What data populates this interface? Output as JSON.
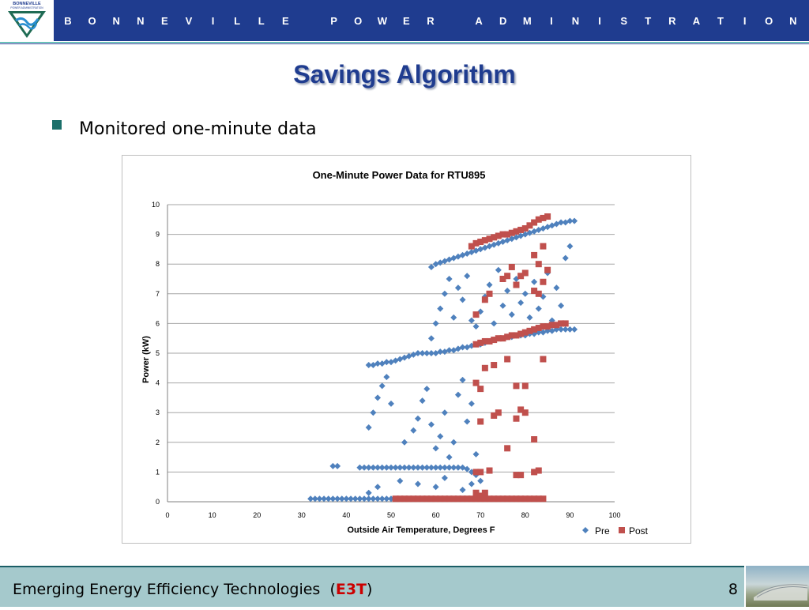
{
  "header": {
    "org_name": "BONNEVILLE POWER ADMINISTRATION",
    "logo_lines": [
      "BONNEVILLE",
      "POWER ADMINISTRATION"
    ]
  },
  "slide": {
    "title": "Savings Algorithm",
    "bullets": [
      "Monitored one-minute data"
    ]
  },
  "chart_data": {
    "type": "scatter",
    "title": "One-Minute Power Data for RTU895",
    "xlabel": "Outside Air Temperature, Degrees F",
    "ylabel": "Power (kW)",
    "xlim": [
      0,
      100
    ],
    "ylim": [
      0,
      10
    ],
    "xticks": [
      0,
      10,
      20,
      30,
      40,
      50,
      60,
      70,
      80,
      90,
      100
    ],
    "yticks": [
      0,
      1,
      2,
      3,
      4,
      5,
      6,
      7,
      8,
      9,
      10
    ],
    "grid": "horizontal",
    "legend": "bottom-right",
    "series": [
      {
        "name": "Pre",
        "color": "#4f81bd",
        "marker": "diamond",
        "points": [
          [
            32,
            0.1
          ],
          [
            33,
            0.1
          ],
          [
            34,
            0.1
          ],
          [
            35,
            0.1
          ],
          [
            36,
            0.1
          ],
          [
            37,
            0.1
          ],
          [
            38,
            0.1
          ],
          [
            39,
            0.1
          ],
          [
            40,
            0.1
          ],
          [
            41,
            0.1
          ],
          [
            42,
            0.1
          ],
          [
            43,
            0.1
          ],
          [
            44,
            0.1
          ],
          [
            45,
            0.1
          ],
          [
            46,
            0.1
          ],
          [
            47,
            0.1
          ],
          [
            48,
            0.1
          ],
          [
            49,
            0.1
          ],
          [
            50,
            0.1
          ],
          [
            37,
            1.2
          ],
          [
            38,
            1.2
          ],
          [
            43,
            1.15
          ],
          [
            44,
            1.15
          ],
          [
            45,
            1.15
          ],
          [
            46,
            1.15
          ],
          [
            47,
            1.15
          ],
          [
            48,
            1.15
          ],
          [
            49,
            1.15
          ],
          [
            50,
            1.15
          ],
          [
            51,
            1.15
          ],
          [
            52,
            1.15
          ],
          [
            53,
            1.15
          ],
          [
            54,
            1.15
          ],
          [
            55,
            1.15
          ],
          [
            56,
            1.15
          ],
          [
            57,
            1.15
          ],
          [
            58,
            1.15
          ],
          [
            59,
            1.15
          ],
          [
            60,
            1.15
          ],
          [
            61,
            1.15
          ],
          [
            62,
            1.15
          ],
          [
            63,
            1.15
          ],
          [
            64,
            1.15
          ],
          [
            65,
            1.15
          ],
          [
            66,
            1.15
          ],
          [
            67,
            1.1
          ],
          [
            68,
            1.0
          ],
          [
            69,
            0.9
          ],
          [
            45,
            0.3
          ],
          [
            47,
            0.5
          ],
          [
            52,
            0.7
          ],
          [
            56,
            0.6
          ],
          [
            60,
            0.5
          ],
          [
            62,
            0.8
          ],
          [
            66,
            0.4
          ],
          [
            68,
            0.6
          ],
          [
            70,
            0.7
          ],
          [
            71,
            0.2
          ],
          [
            45,
            2.5
          ],
          [
            46,
            3.0
          ],
          [
            47,
            3.5
          ],
          [
            48,
            3.9
          ],
          [
            49,
            4.2
          ],
          [
            50,
            3.3
          ],
          [
            53,
            2.0
          ],
          [
            55,
            2.4
          ],
          [
            56,
            2.8
          ],
          [
            57,
            3.4
          ],
          [
            58,
            3.8
          ],
          [
            59,
            2.6
          ],
          [
            60,
            1.8
          ],
          [
            61,
            2.2
          ],
          [
            62,
            3.0
          ],
          [
            63,
            1.5
          ],
          [
            64,
            2.0
          ],
          [
            65,
            3.6
          ],
          [
            66,
            4.1
          ],
          [
            67,
            2.7
          ],
          [
            68,
            3.3
          ],
          [
            69,
            1.6
          ],
          [
            45,
            4.6
          ],
          [
            46,
            4.6
          ],
          [
            47,
            4.65
          ],
          [
            48,
            4.65
          ],
          [
            49,
            4.7
          ],
          [
            50,
            4.7
          ],
          [
            51,
            4.75
          ],
          [
            52,
            4.8
          ],
          [
            53,
            4.85
          ],
          [
            54,
            4.9
          ],
          [
            55,
            4.95
          ],
          [
            56,
            5.0
          ],
          [
            57,
            5.0
          ],
          [
            58,
            5.0
          ],
          [
            59,
            5.0
          ],
          [
            60,
            5.0
          ],
          [
            61,
            5.05
          ],
          [
            62,
            5.05
          ],
          [
            63,
            5.1
          ],
          [
            64,
            5.1
          ],
          [
            65,
            5.15
          ],
          [
            66,
            5.2
          ],
          [
            67,
            5.2
          ],
          [
            68,
            5.25
          ],
          [
            69,
            5.3
          ],
          [
            70,
            5.3
          ],
          [
            71,
            5.35
          ],
          [
            72,
            5.4
          ],
          [
            73,
            5.45
          ],
          [
            74,
            5.5
          ],
          [
            75,
            5.5
          ],
          [
            76,
            5.55
          ],
          [
            77,
            5.55
          ],
          [
            78,
            5.6
          ],
          [
            79,
            5.6
          ],
          [
            80,
            5.6
          ],
          [
            81,
            5.65
          ],
          [
            82,
            5.65
          ],
          [
            83,
            5.7
          ],
          [
            84,
            5.7
          ],
          [
            85,
            5.75
          ],
          [
            86,
            5.75
          ],
          [
            87,
            5.8
          ],
          [
            88,
            5.8
          ],
          [
            89,
            5.8
          ],
          [
            90,
            5.8
          ],
          [
            91,
            5.8
          ],
          [
            59,
            5.5
          ],
          [
            60,
            6.0
          ],
          [
            61,
            6.5
          ],
          [
            62,
            7.0
          ],
          [
            63,
            7.5
          ],
          [
            64,
            6.2
          ],
          [
            65,
            7.2
          ],
          [
            66,
            6.8
          ],
          [
            67,
            7.6
          ],
          [
            68,
            6.1
          ],
          [
            69,
            5.9
          ],
          [
            70,
            6.4
          ],
          [
            71,
            6.9
          ],
          [
            72,
            7.3
          ],
          [
            73,
            6.0
          ],
          [
            74,
            7.8
          ],
          [
            75,
            6.6
          ],
          [
            76,
            7.1
          ],
          [
            77,
            6.3
          ],
          [
            78,
            7.5
          ],
          [
            79,
            6.7
          ],
          [
            80,
            7.0
          ],
          [
            81,
            6.2
          ],
          [
            82,
            7.4
          ],
          [
            83,
            6.5
          ],
          [
            84,
            6.9
          ],
          [
            85,
            7.7
          ],
          [
            86,
            6.1
          ],
          [
            87,
            7.2
          ],
          [
            88,
            6.6
          ],
          [
            89,
            8.2
          ],
          [
            90,
            8.6
          ],
          [
            59,
            7.9
          ],
          [
            60,
            8.0
          ],
          [
            61,
            8.05
          ],
          [
            62,
            8.1
          ],
          [
            63,
            8.15
          ],
          [
            64,
            8.2
          ],
          [
            65,
            8.25
          ],
          [
            66,
            8.3
          ],
          [
            67,
            8.35
          ],
          [
            68,
            8.4
          ],
          [
            69,
            8.45
          ],
          [
            70,
            8.5
          ],
          [
            71,
            8.55
          ],
          [
            72,
            8.6
          ],
          [
            73,
            8.65
          ],
          [
            74,
            8.7
          ],
          [
            75,
            8.75
          ],
          [
            76,
            8.8
          ],
          [
            77,
            8.85
          ],
          [
            78,
            8.9
          ],
          [
            79,
            8.95
          ],
          [
            80,
            9.0
          ],
          [
            81,
            9.05
          ],
          [
            82,
            9.1
          ],
          [
            83,
            9.15
          ],
          [
            84,
            9.2
          ],
          [
            85,
            9.25
          ],
          [
            86,
            9.3
          ],
          [
            87,
            9.35
          ],
          [
            88,
            9.4
          ],
          [
            89,
            9.4
          ],
          [
            90,
            9.45
          ],
          [
            91,
            9.45
          ]
        ]
      },
      {
        "name": "Post",
        "color": "#c0504d",
        "marker": "square",
        "points": [
          [
            51,
            0.1
          ],
          [
            52,
            0.1
          ],
          [
            53,
            0.1
          ],
          [
            54,
            0.1
          ],
          [
            55,
            0.1
          ],
          [
            56,
            0.1
          ],
          [
            57,
            0.1
          ],
          [
            58,
            0.1
          ],
          [
            59,
            0.1
          ],
          [
            60,
            0.1
          ],
          [
            61,
            0.1
          ],
          [
            62,
            0.1
          ],
          [
            63,
            0.1
          ],
          [
            64,
            0.1
          ],
          [
            65,
            0.1
          ],
          [
            66,
            0.1
          ],
          [
            67,
            0.1
          ],
          [
            68,
            0.1
          ],
          [
            69,
            0.1
          ],
          [
            70,
            0.1
          ],
          [
            71,
            0.1
          ],
          [
            72,
            0.1
          ],
          [
            73,
            0.1
          ],
          [
            74,
            0.1
          ],
          [
            75,
            0.1
          ],
          [
            76,
            0.1
          ],
          [
            77,
            0.1
          ],
          [
            78,
            0.1
          ],
          [
            79,
            0.1
          ],
          [
            80,
            0.1
          ],
          [
            81,
            0.1
          ],
          [
            82,
            0.1
          ],
          [
            83,
            0.1
          ],
          [
            84,
            0.1
          ],
          [
            69,
            0.3
          ],
          [
            70,
            0.2
          ],
          [
            71,
            0.3
          ],
          [
            69,
            1.0
          ],
          [
            70,
            1.0
          ],
          [
            72,
            1.05
          ],
          [
            78,
            0.9
          ],
          [
            79,
            0.9
          ],
          [
            82,
            1.0
          ],
          [
            83,
            1.05
          ],
          [
            70,
            2.7
          ],
          [
            73,
            2.9
          ],
          [
            74,
            3.0
          ],
          [
            76,
            1.8
          ],
          [
            78,
            2.8
          ],
          [
            79,
            3.1
          ],
          [
            80,
            3.0
          ],
          [
            82,
            2.1
          ],
          [
            69,
            4.0
          ],
          [
            70,
            3.8
          ],
          [
            71,
            4.5
          ],
          [
            73,
            4.6
          ],
          [
            76,
            4.8
          ],
          [
            78,
            3.9
          ],
          [
            80,
            3.9
          ],
          [
            84,
            4.8
          ],
          [
            69,
            5.3
          ],
          [
            70,
            5.35
          ],
          [
            71,
            5.4
          ],
          [
            72,
            5.4
          ],
          [
            73,
            5.45
          ],
          [
            74,
            5.5
          ],
          [
            75,
            5.5
          ],
          [
            76,
            5.55
          ],
          [
            77,
            5.6
          ],
          [
            78,
            5.6
          ],
          [
            79,
            5.65
          ],
          [
            80,
            5.7
          ],
          [
            81,
            5.75
          ],
          [
            82,
            5.8
          ],
          [
            83,
            5.85
          ],
          [
            84,
            5.9
          ],
          [
            85,
            5.9
          ],
          [
            86,
            5.95
          ],
          [
            87,
            5.95
          ],
          [
            88,
            6.0
          ],
          [
            89,
            6.0
          ],
          [
            69,
            6.3
          ],
          [
            71,
            6.8
          ],
          [
            72,
            7.0
          ],
          [
            75,
            7.5
          ],
          [
            76,
            7.6
          ],
          [
            77,
            7.9
          ],
          [
            78,
            7.3
          ],
          [
            79,
            7.6
          ],
          [
            80,
            7.7
          ],
          [
            82,
            7.1
          ],
          [
            83,
            7.0
          ],
          [
            84,
            7.4
          ],
          [
            85,
            7.8
          ],
          [
            68,
            8.6
          ],
          [
            69,
            8.7
          ],
          [
            70,
            8.75
          ],
          [
            71,
            8.8
          ],
          [
            72,
            8.85
          ],
          [
            73,
            8.9
          ],
          [
            74,
            8.95
          ],
          [
            75,
            9.0
          ],
          [
            76,
            9.0
          ],
          [
            77,
            9.05
          ],
          [
            78,
            9.1
          ],
          [
            79,
            9.15
          ],
          [
            80,
            9.2
          ],
          [
            81,
            9.3
          ],
          [
            82,
            9.4
          ],
          [
            83,
            9.5
          ],
          [
            84,
            9.55
          ],
          [
            85,
            9.6
          ],
          [
            82,
            8.3
          ],
          [
            83,
            8.0
          ],
          [
            84,
            8.6
          ]
        ]
      }
    ]
  },
  "footer": {
    "title": "Emerging Energy Efficiency Technologies",
    "paren_open": "(",
    "abbr": "E3T",
    "paren_close": ")",
    "page": "8"
  }
}
